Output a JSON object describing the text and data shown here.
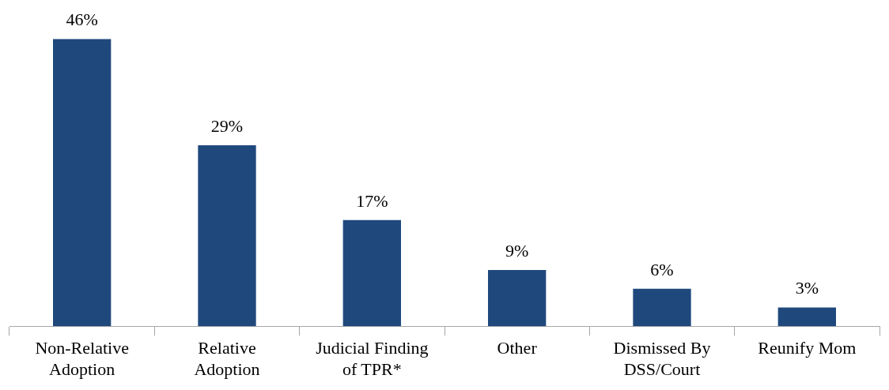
{
  "chart_data": {
    "type": "bar",
    "categories": [
      "Non-Relative Adoption",
      "Relative Adoption",
      "Judicial Finding of TPR*",
      "Other",
      "Dismissed By DSS/Court",
      "Reunify Mom"
    ],
    "values": [
      46,
      29,
      17,
      9,
      6,
      3
    ],
    "value_labels": [
      "46%",
      "29%",
      "17%",
      "9%",
      "6%",
      "3%"
    ],
    "color": "#1f497d",
    "tick_labels": "x",
    "grid": false,
    "legend": false
  }
}
